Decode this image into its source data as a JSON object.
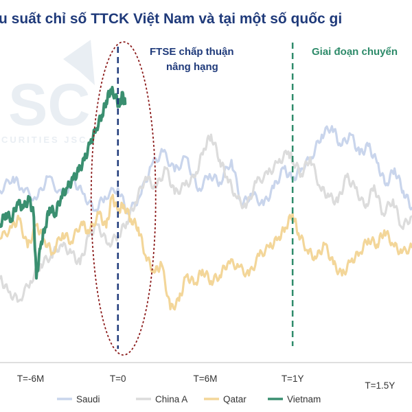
{
  "chart_data": {
    "type": "line",
    "title": "u suất chỉ số TTCK Việt Nam và tại một số quốc gi",
    "xlabel": "",
    "ylabel": "",
    "x_ticks": [
      {
        "label": "T=-6M",
        "x": -6
      },
      {
        "label": "T=0",
        "x": 0
      },
      {
        "label": "T=6M",
        "x": 6
      },
      {
        "label": "T=1Y",
        "x": 12
      },
      {
        "label": "T=1.5Y",
        "x": 18
      }
    ],
    "x_range": [
      -8.1,
      20.2
    ],
    "y_range": [
      0,
      100
    ],
    "annotations": [
      {
        "id": "ftse",
        "lines": [
          "FTSE chấp thuận",
          "nâng hạng"
        ],
        "x": 0,
        "color": "#1f3a7a"
      },
      {
        "id": "transition",
        "lines": [
          "Giai đoạn chuyển"
        ],
        "x": 12,
        "color": "#2e8b6a"
      }
    ],
    "watermark": {
      "text": "SC",
      "subtext": "CURITIES  JSC"
    },
    "series": [
      {
        "name": "Saudi",
        "color": "#c9d5ec",
        "points": [
          [
            -8.1,
            59
          ],
          [
            -7.2,
            64
          ],
          [
            -6.6,
            60
          ],
          [
            -5.6,
            56
          ],
          [
            -4.8,
            64
          ],
          [
            -3.8,
            57
          ],
          [
            -3.1,
            63
          ],
          [
            -2.4,
            58
          ],
          [
            -1.6,
            52
          ],
          [
            -0.9,
            57
          ],
          [
            0,
            60
          ],
          [
            0.7,
            51
          ],
          [
            1.5,
            57
          ],
          [
            2.3,
            68
          ],
          [
            3.1,
            73
          ],
          [
            3.9,
            66
          ],
          [
            4.7,
            71
          ],
          [
            5.5,
            59
          ],
          [
            6.3,
            65
          ],
          [
            7.0,
            62
          ],
          [
            7.8,
            70
          ],
          [
            8.5,
            54
          ],
          [
            9.2,
            58
          ],
          [
            10.0,
            54
          ],
          [
            10.7,
            60
          ],
          [
            11.4,
            67
          ],
          [
            12,
            63
          ],
          [
            12.6,
            67
          ],
          [
            13.3,
            71
          ],
          [
            14.0,
            79
          ],
          [
            14.7,
            82
          ],
          [
            15.3,
            75
          ],
          [
            16.0,
            79
          ],
          [
            16.6,
            72
          ],
          [
            17.2,
            75
          ],
          [
            17.8,
            69
          ],
          [
            18.4,
            61
          ],
          [
            19.0,
            67
          ],
          [
            19.6,
            59
          ],
          [
            20.2,
            53
          ]
        ]
      },
      {
        "name": "China A",
        "color": "#dcdcdc",
        "points": [
          [
            -8.1,
            28
          ],
          [
            -7.5,
            23
          ],
          [
            -6.8,
            20
          ],
          [
            -6.0,
            27
          ],
          [
            -5.3,
            33
          ],
          [
            -4.6,
            36
          ],
          [
            -3.9,
            40
          ],
          [
            -3.2,
            37
          ],
          [
            -2.6,
            33
          ],
          [
            -2.0,
            43
          ],
          [
            -1.4,
            47
          ],
          [
            -0.7,
            40
          ],
          [
            0,
            43
          ],
          [
            0.6,
            48
          ],
          [
            1.2,
            55
          ],
          [
            1.9,
            64
          ],
          [
            2.6,
            60
          ],
          [
            3.3,
            67
          ],
          [
            3.9,
            58
          ],
          [
            4.6,
            61
          ],
          [
            5.3,
            64
          ],
          [
            5.9,
            74
          ],
          [
            6.4,
            79
          ],
          [
            7.0,
            70
          ],
          [
            7.5,
            64
          ],
          [
            8.1,
            57
          ],
          [
            8.8,
            53
          ],
          [
            9.5,
            62
          ],
          [
            10.3,
            65
          ],
          [
            11.0,
            69
          ],
          [
            11.7,
            73
          ],
          [
            12,
            70
          ],
          [
            12.6,
            65
          ],
          [
            13.2,
            71
          ],
          [
            13.9,
            60
          ],
          [
            14.5,
            57
          ],
          [
            15.1,
            55
          ],
          [
            15.7,
            64
          ],
          [
            16.3,
            60
          ],
          [
            17.0,
            53
          ],
          [
            17.6,
            61
          ],
          [
            18.2,
            51
          ],
          [
            18.9,
            56
          ],
          [
            19.5,
            46
          ],
          [
            20.2,
            50
          ]
        ]
      },
      {
        "name": "Qatar",
        "color": "#f3d699",
        "points": [
          [
            -8.1,
            42
          ],
          [
            -7.3,
            46
          ],
          [
            -6.8,
            49
          ],
          [
            -6.2,
            39
          ],
          [
            -5.6,
            47
          ],
          [
            -5.1,
            42
          ],
          [
            -4.5,
            37
          ],
          [
            -3.8,
            44
          ],
          [
            -3.2,
            41
          ],
          [
            -2.5,
            48
          ],
          [
            -2.0,
            44
          ],
          [
            -1.3,
            51
          ],
          [
            -0.8,
            46
          ],
          [
            -0.4,
            57
          ],
          [
            0,
            52
          ],
          [
            0.4,
            54
          ],
          [
            0.9,
            49
          ],
          [
            1.4,
            46
          ],
          [
            1.9,
            36
          ],
          [
            2.5,
            30
          ],
          [
            3.0,
            33
          ],
          [
            3.6,
            17
          ],
          [
            4.2,
            20
          ],
          [
            4.7,
            29
          ],
          [
            5.3,
            26
          ],
          [
            5.8,
            31
          ],
          [
            6.4,
            27
          ],
          [
            7.0,
            29
          ],
          [
            7.6,
            34
          ],
          [
            8.3,
            32
          ],
          [
            9.0,
            29
          ],
          [
            9.7,
            36
          ],
          [
            10.4,
            39
          ],
          [
            11.0,
            42
          ],
          [
            11.5,
            46
          ],
          [
            12,
            51
          ],
          [
            12.4,
            44
          ],
          [
            13.0,
            38
          ],
          [
            13.6,
            35
          ],
          [
            14.2,
            40
          ],
          [
            14.8,
            33
          ],
          [
            15.4,
            29
          ],
          [
            16.0,
            34
          ],
          [
            16.6,
            37
          ],
          [
            17.2,
            42
          ],
          [
            17.8,
            40
          ],
          [
            18.3,
            45
          ],
          [
            18.9,
            40
          ],
          [
            19.5,
            37
          ],
          [
            20.2,
            39
          ]
        ]
      },
      {
        "name": "Vietnam",
        "color": "#3a8f70",
        "points": [
          [
            -8.1,
            47
          ],
          [
            -7.7,
            51
          ],
          [
            -7.3,
            49
          ],
          [
            -6.9,
            55
          ],
          [
            -6.5,
            53
          ],
          [
            -6.1,
            56
          ],
          [
            -5.8,
            51
          ],
          [
            -5.6,
            28
          ],
          [
            -5.3,
            40
          ],
          [
            -5.0,
            46
          ],
          [
            -4.7,
            53
          ],
          [
            -4.3,
            51
          ],
          [
            -3.9,
            57
          ],
          [
            -3.5,
            60
          ],
          [
            -3.1,
            63
          ],
          [
            -2.7,
            66
          ],
          [
            -2.3,
            70
          ],
          [
            -1.9,
            76
          ],
          [
            -1.5,
            81
          ],
          [
            -1.1,
            86
          ],
          [
            -0.8,
            91
          ],
          [
            -0.5,
            95
          ],
          [
            -0.2,
            93
          ],
          [
            0.1,
            89
          ],
          [
            0.3,
            93
          ],
          [
            0.5,
            90
          ]
        ]
      }
    ]
  }
}
